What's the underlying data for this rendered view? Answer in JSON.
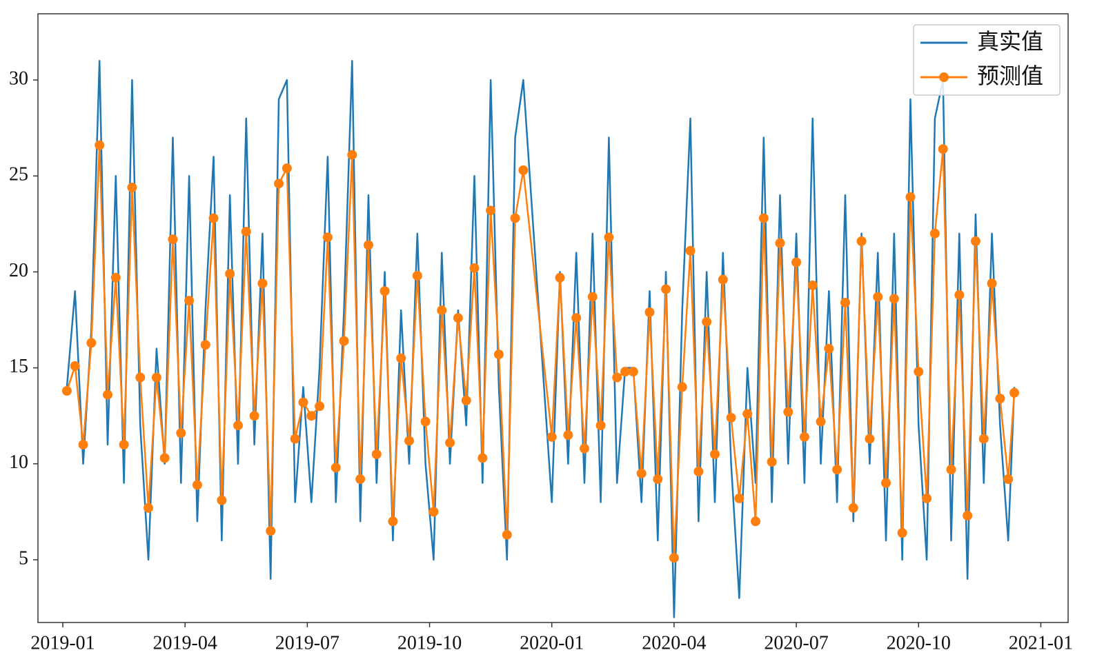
{
  "chart_data": {
    "type": "line",
    "x": [
      0.1,
      0.3,
      0.5,
      0.7,
      0.9,
      1.1,
      1.3,
      1.5,
      1.7,
      1.9,
      2.1,
      2.3,
      2.5,
      2.7,
      2.9,
      3.1,
      3.3,
      3.5,
      3.7,
      3.9,
      4.1,
      4.3,
      4.5,
      4.7,
      4.9,
      5.1,
      5.3,
      5.5,
      5.7,
      5.9,
      6.1,
      6.3,
      6.5,
      6.7,
      6.9,
      7.1,
      7.3,
      7.5,
      7.7,
      7.9,
      8.1,
      8.3,
      8.5,
      8.7,
      8.9,
      9.1,
      9.3,
      9.5,
      9.7,
      9.9,
      10.1,
      10.3,
      10.5,
      10.7,
      10.9,
      11.1,
      11.3,
      12.0,
      12.2,
      12.4,
      12.6,
      12.8,
      13.0,
      13.2,
      13.4,
      13.6,
      13.8,
      14.0,
      14.2,
      14.4,
      14.6,
      14.8,
      15.0,
      15.2,
      15.4,
      15.6,
      15.8,
      16.0,
      16.2,
      16.4,
      16.6,
      16.8,
      17.0,
      17.2,
      17.4,
      17.6,
      17.8,
      18.0,
      18.2,
      18.4,
      18.6,
      18.8,
      19.0,
      19.2,
      19.4,
      19.6,
      19.8,
      20.0,
      20.2,
      20.4,
      20.6,
      20.8,
      21.0,
      21.2,
      21.4,
      21.6,
      21.8,
      22.0,
      22.2,
      22.4,
      22.6,
      22.8,
      23.0,
      23.2,
      23.35
    ],
    "series": [
      {
        "name": "真实值",
        "color": "#1f77b4",
        "marker": false,
        "values": [
          14,
          19,
          10,
          17,
          31,
          11,
          25,
          9,
          30,
          12,
          5,
          16,
          10,
          27,
          9,
          25,
          7,
          18,
          26,
          6,
          24,
          10,
          28,
          11,
          22,
          4,
          29,
          30,
          8,
          14,
          8,
          15,
          26,
          8,
          18,
          31,
          7,
          24,
          9,
          20,
          6,
          18,
          10,
          22,
          10,
          5,
          21,
          10,
          18,
          12,
          25,
          9,
          30,
          14,
          5,
          27,
          30,
          8,
          20,
          10,
          21,
          9,
          22,
          8,
          27,
          9,
          15,
          15,
          8,
          19,
          6,
          20,
          2,
          18,
          28,
          7,
          20,
          8,
          21,
          10,
          3,
          15,
          9,
          27,
          8,
          24,
          10,
          22,
          9,
          28,
          10,
          19,
          8,
          24,
          7,
          22,
          10,
          21,
          6,
          22,
          5,
          29,
          12,
          5,
          28,
          30,
          6,
          22,
          4,
          23,
          9,
          22,
          12,
          6,
          14
        ]
      },
      {
        "name": "预测值",
        "color": "#ff7f0e",
        "marker": true,
        "values": [
          13.8,
          15.1,
          11,
          16.3,
          26.6,
          13.6,
          19.7,
          11,
          24.4,
          14.5,
          7.7,
          14.5,
          10.3,
          21.7,
          11.6,
          18.5,
          8.9,
          16.2,
          22.8,
          8.1,
          19.9,
          12,
          22.1,
          12.5,
          19.4,
          6.5,
          24.6,
          25.4,
          11.3,
          13.2,
          12.5,
          13,
          21.8,
          9.8,
          16.4,
          26.1,
          9.2,
          21.4,
          10.5,
          19,
          7,
          15.5,
          11.2,
          19.8,
          12.2,
          7.5,
          18,
          11.1,
          17.6,
          13.3,
          20.2,
          10.3,
          23.2,
          15.7,
          6.3,
          22.8,
          25.3,
          11.4,
          19.7,
          11.5,
          17.6,
          10.8,
          18.7,
          12,
          21.8,
          14.5,
          14.8,
          14.8,
          9.5,
          17.9,
          9.2,
          19.1,
          5.1,
          14,
          21.1,
          9.6,
          17.4,
          10.5,
          19.6,
          12.4,
          8.2,
          12.6,
          7,
          22.8,
          10.1,
          21.5,
          12.7,
          20.5,
          11.4,
          19.3,
          12.2,
          16,
          9.7,
          18.4,
          7.7,
          21.6,
          11.3,
          18.7,
          9,
          18.6,
          6.4,
          23.9,
          14.8,
          8.2,
          22,
          26.4,
          9.7,
          18.8,
          7.3,
          21.6,
          11.3,
          19.4,
          13.4,
          9.2,
          13.7
        ]
      }
    ],
    "xlim": [
      -0.61,
      24.67
    ],
    "xticks": [
      {
        "value": 0,
        "label": "2019-01"
      },
      {
        "value": 3,
        "label": "2019-04"
      },
      {
        "value": 6,
        "label": "2019-07"
      },
      {
        "value": 9,
        "label": "2019-10"
      },
      {
        "value": 12,
        "label": "2020-01"
      },
      {
        "value": 15,
        "label": "2020-04"
      },
      {
        "value": 18,
        "label": "2020-07"
      },
      {
        "value": 21,
        "label": "2020-10"
      },
      {
        "value": 24,
        "label": "2021-01"
      }
    ],
    "ylim": [
      1.73,
      33.45
    ],
    "yticks": [
      5,
      10,
      15,
      20,
      25,
      30
    ],
    "legend": "upper right"
  }
}
